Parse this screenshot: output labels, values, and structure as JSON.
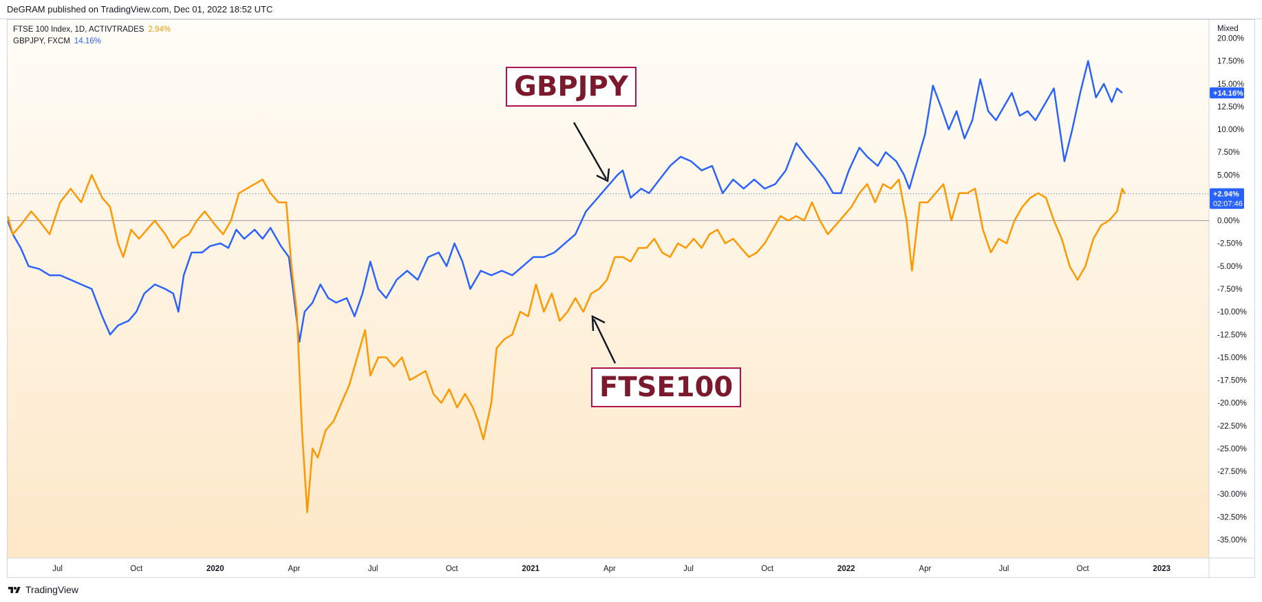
{
  "header": {
    "text": "DeGRAM published on TradingView.com, Dec 01, 2022 18:52 UTC"
  },
  "legend": [
    {
      "label": "FTSE 100 Index, 1D, ACTIVTRADES",
      "value": "2.94%",
      "color": "#ff9800"
    },
    {
      "label": "GBPJPY, FXCM",
      "value": "14.16%",
      "color": "#2962ff"
    }
  ],
  "scale_mode": "Mixed",
  "price_tags": {
    "gbpjpy": {
      "value": "+14.16%",
      "color": "#2962ff"
    },
    "ftse": {
      "value": "+2.94%",
      "countdown": "02:07:46",
      "color": "#2962ff"
    }
  },
  "annotations": {
    "gbpjpy_label": "GBPJPY",
    "ftse_label": "FTSE100"
  },
  "footer": {
    "brand": "TradingView"
  },
  "chart_data": {
    "type": "line",
    "background_gradient": [
      "#fffdf8",
      "#fde8c8"
    ],
    "x_tick_labels": [
      "Jul",
      "Oct",
      "2020",
      "Apr",
      "Jul",
      "Oct",
      "2021",
      "Apr",
      "Jul",
      "Oct",
      "2022",
      "Apr",
      "Jul",
      "Oct",
      "2023"
    ],
    "x_tick_months": [
      6.5,
      9.5,
      12.5,
      15.5,
      18.5,
      21.5,
      24.5,
      27.5,
      30.5,
      33.5,
      36.5,
      39.5,
      42.5,
      45.5,
      48.5
    ],
    "x_range_months": [
      4.6,
      50.3
    ],
    "y_axis": {
      "unit": "%",
      "range": [
        -37,
        22
      ],
      "tick_labels": [
        "20.00%",
        "17.50%",
        "15.00%",
        "12.50%",
        "10.00%",
        "7.50%",
        "5.00%",
        "2.50%",
        "0.00%",
        "-2.50%",
        "-5.00%",
        "-7.50%",
        "-10.00%",
        "-12.50%",
        "-15.00%",
        "-17.50%",
        "-20.00%",
        "-22.50%",
        "-25.00%",
        "-27.50%",
        "-30.00%",
        "-32.50%",
        "-35.00%"
      ],
      "tick_values": [
        20,
        17.5,
        15,
        12.5,
        10,
        7.5,
        5,
        2.5,
        0,
        -2.5,
        -5,
        -7.5,
        -10,
        -12.5,
        -15,
        -17.5,
        -20,
        -22.5,
        -25,
        -27.5,
        -30,
        -32.5,
        -35
      ],
      "zero_line": 0,
      "last_value_line": 2.94
    },
    "series": [
      {
        "name": "GBPJPY",
        "color": "#2962ff",
        "points": [
          [
            4.6,
            0
          ],
          [
            4.8,
            -1.5
          ],
          [
            5.1,
            -3
          ],
          [
            5.4,
            -5
          ],
          [
            5.8,
            -5.3
          ],
          [
            6.2,
            -6
          ],
          [
            6.6,
            -6
          ],
          [
            7,
            -6.5
          ],
          [
            7.4,
            -7
          ],
          [
            7.8,
            -7.5
          ],
          [
            8.2,
            -10.5
          ],
          [
            8.5,
            -12.5
          ],
          [
            8.8,
            -11.5
          ],
          [
            9.2,
            -11
          ],
          [
            9.5,
            -10
          ],
          [
            9.8,
            -8
          ],
          [
            10.2,
            -7
          ],
          [
            10.6,
            -7.5
          ],
          [
            10.9,
            -8
          ],
          [
            11.1,
            -10
          ],
          [
            11.3,
            -6
          ],
          [
            11.6,
            -3.5
          ],
          [
            12,
            -3.5
          ],
          [
            12.3,
            -2.8
          ],
          [
            12.7,
            -2.5
          ],
          [
            13,
            -3
          ],
          [
            13.3,
            -1
          ],
          [
            13.6,
            -2
          ],
          [
            14,
            -1
          ],
          [
            14.3,
            -2
          ],
          [
            14.6,
            -0.8
          ],
          [
            15,
            -2.8
          ],
          [
            15.3,
            -4
          ],
          [
            15.5,
            -8.5
          ],
          [
            15.7,
            -13.3
          ],
          [
            15.9,
            -10
          ],
          [
            16.2,
            -9
          ],
          [
            16.5,
            -7
          ],
          [
            16.8,
            -8.5
          ],
          [
            17.1,
            -9
          ],
          [
            17.5,
            -8.5
          ],
          [
            17.8,
            -10.5
          ],
          [
            18.1,
            -8
          ],
          [
            18.4,
            -4.5
          ],
          [
            18.7,
            -7.5
          ],
          [
            19,
            -8.5
          ],
          [
            19.4,
            -6.5
          ],
          [
            19.8,
            -5.5
          ],
          [
            20.2,
            -6.5
          ],
          [
            20.6,
            -4
          ],
          [
            21,
            -3.5
          ],
          [
            21.3,
            -5
          ],
          [
            21.6,
            -2.5
          ],
          [
            21.9,
            -4.5
          ],
          [
            22.2,
            -7.5
          ],
          [
            22.6,
            -5.5
          ],
          [
            23,
            -6
          ],
          [
            23.4,
            -5.5
          ],
          [
            23.8,
            -6
          ],
          [
            24.2,
            -5
          ],
          [
            24.6,
            -4
          ],
          [
            25,
            -4
          ],
          [
            25.4,
            -3.5
          ],
          [
            25.8,
            -2.5
          ],
          [
            26.2,
            -1.5
          ],
          [
            26.6,
            1
          ],
          [
            26.9,
            2
          ],
          [
            27.2,
            3
          ],
          [
            27.5,
            4
          ],
          [
            27.8,
            5
          ],
          [
            28,
            5.5
          ],
          [
            28.3,
            2.5
          ],
          [
            28.7,
            3.5
          ],
          [
            29,
            3
          ],
          [
            29.4,
            4.5
          ],
          [
            29.8,
            6
          ],
          [
            30.2,
            7
          ],
          [
            30.6,
            6.5
          ],
          [
            31,
            5.5
          ],
          [
            31.4,
            6
          ],
          [
            31.8,
            3
          ],
          [
            32.2,
            4.5
          ],
          [
            32.6,
            3.5
          ],
          [
            33,
            4.5
          ],
          [
            33.4,
            3.5
          ],
          [
            33.8,
            4
          ],
          [
            34.2,
            5.5
          ],
          [
            34.6,
            8.5
          ],
          [
            35,
            7
          ],
          [
            35.3,
            6
          ],
          [
            35.7,
            4.5
          ],
          [
            36,
            3
          ],
          [
            36.3,
            3
          ],
          [
            36.6,
            5.5
          ],
          [
            37,
            8
          ],
          [
            37.3,
            7
          ],
          [
            37.7,
            6
          ],
          [
            38,
            7.5
          ],
          [
            38.4,
            6.5
          ],
          [
            38.7,
            5
          ],
          [
            38.9,
            3.5
          ],
          [
            39.2,
            6.5
          ],
          [
            39.5,
            9.5
          ],
          [
            39.8,
            14.8
          ],
          [
            40.1,
            12.5
          ],
          [
            40.4,
            10
          ],
          [
            40.7,
            12
          ],
          [
            41,
            9
          ],
          [
            41.3,
            11
          ],
          [
            41.6,
            15.5
          ],
          [
            41.9,
            12
          ],
          [
            42.2,
            11
          ],
          [
            42.5,
            12.5
          ],
          [
            42.8,
            14
          ],
          [
            43.1,
            11.5
          ],
          [
            43.4,
            12
          ],
          [
            43.7,
            11
          ],
          [
            44,
            12.5
          ],
          [
            44.4,
            14.5
          ],
          [
            44.6,
            10.5
          ],
          [
            44.8,
            6.5
          ],
          [
            45.1,
            10
          ],
          [
            45.4,
            14
          ],
          [
            45.7,
            17.5
          ],
          [
            46,
            13.5
          ],
          [
            46.3,
            15
          ],
          [
            46.6,
            13
          ],
          [
            46.8,
            14.5
          ],
          [
            47,
            14
          ]
        ]
      },
      {
        "name": "FTSE 100",
        "color": "#ff9800",
        "points": [
          [
            4.6,
            0.5
          ],
          [
            4.8,
            -1.5
          ],
          [
            5.1,
            -0.5
          ],
          [
            5.5,
            1
          ],
          [
            5.8,
            0
          ],
          [
            6.2,
            -1.5
          ],
          [
            6.6,
            2
          ],
          [
            7,
            3.5
          ],
          [
            7.4,
            2
          ],
          [
            7.8,
            5
          ],
          [
            8.2,
            2.5
          ],
          [
            8.5,
            1.5
          ],
          [
            8.8,
            -2.5
          ],
          [
            9,
            -4
          ],
          [
            9.3,
            -1
          ],
          [
            9.6,
            -2
          ],
          [
            9.9,
            -1
          ],
          [
            10.2,
            0
          ],
          [
            10.6,
            -1.5
          ],
          [
            10.9,
            -3
          ],
          [
            11.2,
            -2
          ],
          [
            11.5,
            -1.5
          ],
          [
            11.8,
            0
          ],
          [
            12.1,
            1
          ],
          [
            12.5,
            -0.5
          ],
          [
            12.8,
            -1.5
          ],
          [
            13.1,
            0
          ],
          [
            13.4,
            3
          ],
          [
            13.7,
            3.5
          ],
          [
            14,
            4
          ],
          [
            14.3,
            4.5
          ],
          [
            14.6,
            3
          ],
          [
            14.9,
            2
          ],
          [
            15.2,
            2
          ],
          [
            15.4,
            -5
          ],
          [
            15.6,
            -10
          ],
          [
            15.8,
            -23
          ],
          [
            16,
            -32
          ],
          [
            16.2,
            -25
          ],
          [
            16.4,
            -26
          ],
          [
            16.7,
            -23
          ],
          [
            17,
            -22
          ],
          [
            17.3,
            -20
          ],
          [
            17.6,
            -18
          ],
          [
            17.9,
            -15
          ],
          [
            18.2,
            -12
          ],
          [
            18.4,
            -17
          ],
          [
            18.7,
            -15
          ],
          [
            19,
            -15
          ],
          [
            19.3,
            -16
          ],
          [
            19.6,
            -15
          ],
          [
            19.9,
            -17.5
          ],
          [
            20.2,
            -17
          ],
          [
            20.5,
            -16.5
          ],
          [
            20.8,
            -19
          ],
          [
            21.1,
            -20
          ],
          [
            21.4,
            -18.5
          ],
          [
            21.7,
            -20.5
          ],
          [
            22,
            -19
          ],
          [
            22.3,
            -20.5
          ],
          [
            22.5,
            -22
          ],
          [
            22.7,
            -24
          ],
          [
            23,
            -20
          ],
          [
            23.2,
            -14
          ],
          [
            23.5,
            -13
          ],
          [
            23.8,
            -12.5
          ],
          [
            24.1,
            -10
          ],
          [
            24.4,
            -10.5
          ],
          [
            24.7,
            -7
          ],
          [
            25,
            -10
          ],
          [
            25.3,
            -8
          ],
          [
            25.6,
            -11
          ],
          [
            25.9,
            -10
          ],
          [
            26.2,
            -8.5
          ],
          [
            26.5,
            -10
          ],
          [
            26.8,
            -8
          ],
          [
            27.1,
            -7.5
          ],
          [
            27.4,
            -6.5
          ],
          [
            27.7,
            -4
          ],
          [
            28,
            -4
          ],
          [
            28.3,
            -4.5
          ],
          [
            28.6,
            -3
          ],
          [
            28.9,
            -3
          ],
          [
            29.2,
            -2
          ],
          [
            29.5,
            -3.5
          ],
          [
            29.8,
            -4
          ],
          [
            30.1,
            -2.5
          ],
          [
            30.4,
            -3
          ],
          [
            30.7,
            -2
          ],
          [
            31,
            -3
          ],
          [
            31.3,
            -1.5
          ],
          [
            31.6,
            -1
          ],
          [
            31.9,
            -2.5
          ],
          [
            32.2,
            -2
          ],
          [
            32.5,
            -3
          ],
          [
            32.8,
            -4
          ],
          [
            33.1,
            -3.5
          ],
          [
            33.4,
            -2.5
          ],
          [
            33.7,
            -1
          ],
          [
            34,
            0.5
          ],
          [
            34.3,
            0
          ],
          [
            34.6,
            0.5
          ],
          [
            34.9,
            0
          ],
          [
            35.2,
            2
          ],
          [
            35.5,
            0
          ],
          [
            35.8,
            -1.5
          ],
          [
            36.1,
            -0.5
          ],
          [
            36.4,
            0.5
          ],
          [
            36.7,
            1.5
          ],
          [
            37,
            3
          ],
          [
            37.3,
            4
          ],
          [
            37.6,
            2
          ],
          [
            37.9,
            4
          ],
          [
            38.2,
            3.5
          ],
          [
            38.5,
            4.5
          ],
          [
            38.8,
            0
          ],
          [
            39,
            -5.5
          ],
          [
            39.3,
            2
          ],
          [
            39.6,
            2
          ],
          [
            39.9,
            3
          ],
          [
            40.2,
            4
          ],
          [
            40.5,
            0
          ],
          [
            40.8,
            3
          ],
          [
            41.1,
            3
          ],
          [
            41.4,
            3.5
          ],
          [
            41.7,
            -1
          ],
          [
            42,
            -3.5
          ],
          [
            42.3,
            -2
          ],
          [
            42.6,
            -2.5
          ],
          [
            42.9,
            0
          ],
          [
            43.2,
            1.5
          ],
          [
            43.5,
            2.5
          ],
          [
            43.8,
            3
          ],
          [
            44.1,
            2.5
          ],
          [
            44.4,
            0
          ],
          [
            44.7,
            -2
          ],
          [
            45,
            -5
          ],
          [
            45.3,
            -6.5
          ],
          [
            45.6,
            -5
          ],
          [
            45.9,
            -2
          ],
          [
            46.2,
            -0.5
          ],
          [
            46.5,
            0
          ],
          [
            46.8,
            1
          ],
          [
            47,
            3.5
          ],
          [
            47.1,
            2.94
          ]
        ]
      }
    ]
  }
}
